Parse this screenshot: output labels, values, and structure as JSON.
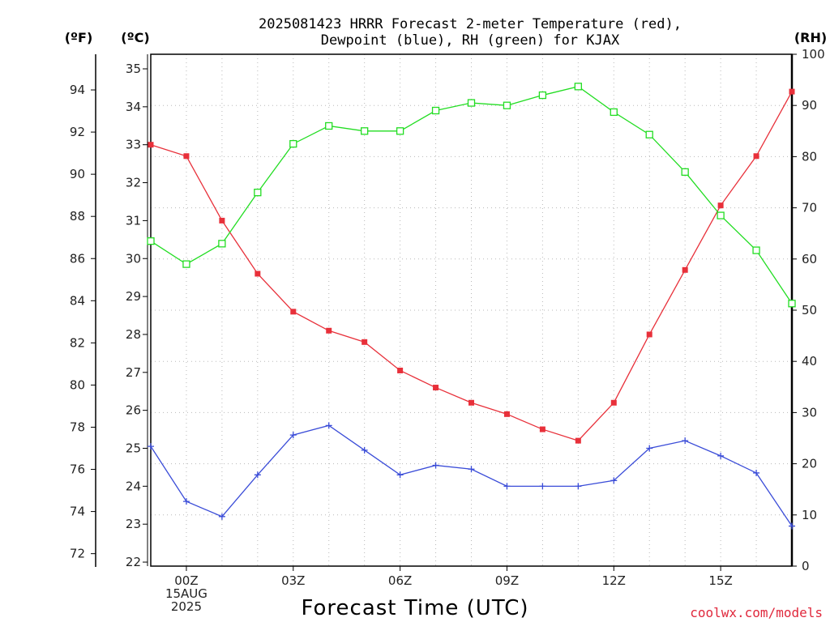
{
  "chart_data": {
    "type": "line",
    "title": [
      "2025081423 HRRR Forecast 2-meter Temperature (red),",
      "Dewpoint (blue), RH (green) for KJAX"
    ],
    "xlabel": "Forecast Time (UTC)",
    "watermark": "coolwx.com/models",
    "units": {
      "left_outer": "(ºF)",
      "left_inner": "(ºC)",
      "right": "(RH)"
    },
    "x": [
      -1,
      0,
      1,
      2,
      3,
      4,
      5,
      6,
      7,
      8,
      9,
      10,
      11,
      12,
      13,
      14,
      15,
      16,
      17
    ],
    "xlim": [
      -1,
      17
    ],
    "x_ticks": [
      {
        "x": 0,
        "lines": [
          "00Z",
          "15AUG",
          "2025"
        ]
      },
      {
        "x": 3,
        "lines": [
          "03Z"
        ]
      },
      {
        "x": 6,
        "lines": [
          "06Z"
        ]
      },
      {
        "x": 9,
        "lines": [
          "09Z"
        ]
      },
      {
        "x": 12,
        "lines": [
          "12Z"
        ]
      },
      {
        "x": 15,
        "lines": [
          "15Z"
        ]
      }
    ],
    "celsius_axis": {
      "ylim": [
        21.85,
        35.35
      ],
      "ticks": [
        "22",
        "23",
        "24",
        "25",
        "26",
        "27",
        "28",
        "29",
        "30",
        "31",
        "32",
        "33",
        "34",
        "35"
      ]
    },
    "fahrenheit_axis": {
      "ticks": [
        "72",
        "74",
        "76",
        "78",
        "80",
        "82",
        "84",
        "86",
        "88",
        "90",
        "92",
        "94"
      ]
    },
    "rh_axis": {
      "ylim": [
        0,
        100
      ],
      "ticks": [
        "0",
        "10",
        "20",
        "30",
        "40",
        "50",
        "60",
        "70",
        "80",
        "90",
        "100"
      ]
    },
    "series": [
      {
        "name": "Temperature",
        "axis": "celsius",
        "color": "#e8303a",
        "marker": "square-filled",
        "values": [
          33.0,
          32.7,
          31.0,
          29.6,
          28.6,
          28.1,
          27.8,
          27.05,
          26.6,
          26.2,
          25.9,
          25.5,
          25.2,
          26.2,
          28.0,
          29.7,
          31.4,
          32.7,
          34.4
        ]
      },
      {
        "name": "Dewpoint",
        "axis": "celsius",
        "color": "#3a4cd8",
        "marker": "plus",
        "values": [
          25.05,
          23.6,
          23.2,
          24.3,
          25.35,
          25.6,
          24.95,
          24.3,
          24.55,
          24.45,
          24.0,
          24.0,
          24.0,
          24.15,
          25.0,
          25.2,
          24.8,
          24.35,
          22.95
        ]
      },
      {
        "name": "RH",
        "axis": "rh",
        "color": "#22dd22",
        "marker": "square-open",
        "values": [
          63.5,
          59.0,
          63.0,
          73.0,
          82.5,
          86.0,
          85.0,
          85.0,
          89.0,
          90.5,
          90.0,
          92.0,
          93.7,
          88.7,
          84.3,
          77.0,
          68.5,
          61.7,
          51.3
        ]
      }
    ],
    "grid": true
  }
}
